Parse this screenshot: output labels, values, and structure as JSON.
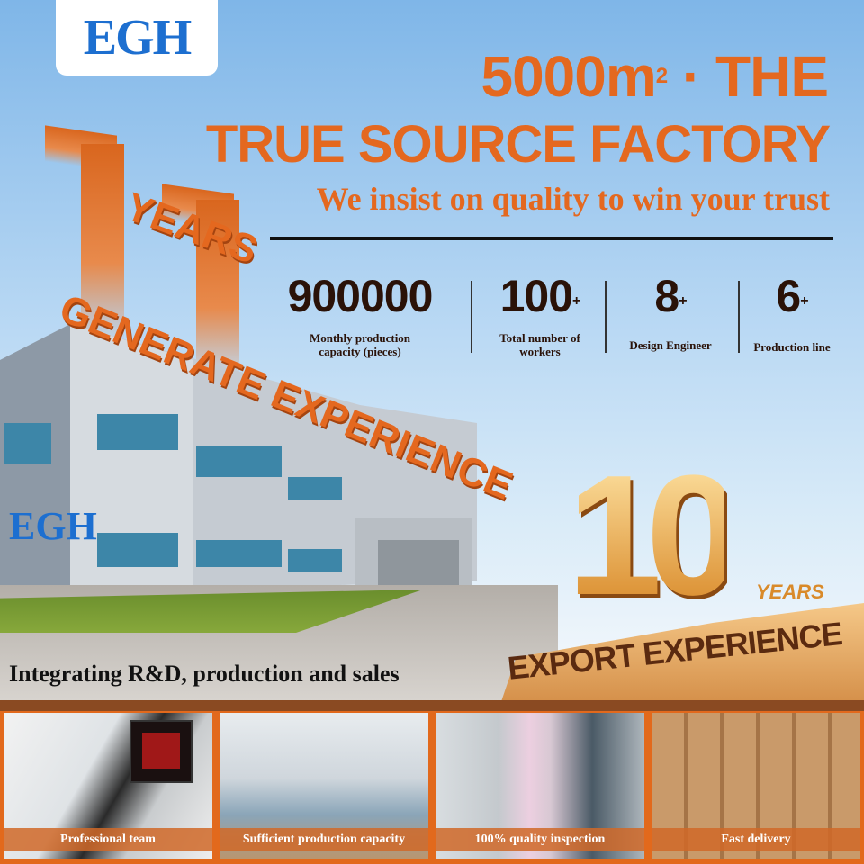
{
  "logo": {
    "text": "EGH"
  },
  "headline": {
    "area": "5000m",
    "sup": "2",
    "rest": " · THE",
    "line2": "TRUE SOURCE FACTORY",
    "slogan": "We insist on quality to win your trust"
  },
  "stats": [
    {
      "value": "900000",
      "plus": "",
      "label": "Monthly production capacity (pieces)"
    },
    {
      "value": "100",
      "plus": "+",
      "label": "Total number of workers"
    },
    {
      "value": "8",
      "plus": "+",
      "label": "Design Engineer"
    },
    {
      "value": "6",
      "plus": "+",
      "label": "Production line"
    }
  ],
  "experience": {
    "years_word": "YEARS",
    "generate": "GENERATE EXPERIENCE",
    "building_sign": "EGH"
  },
  "tagline": "Integrating R&D, production and sales",
  "export": {
    "number": "10",
    "years": "YEARS",
    "label": "EXPORT EXPERIENCE"
  },
  "panels": [
    {
      "label": "Professional team"
    },
    {
      "label": "Sufficient production capacity"
    },
    {
      "label": "100% quality inspection"
    },
    {
      "label": "Fast delivery"
    }
  ],
  "colors": {
    "accent": "#e4681f",
    "brand_blue": "#1d6fd0",
    "gold": "#e3a23c"
  }
}
